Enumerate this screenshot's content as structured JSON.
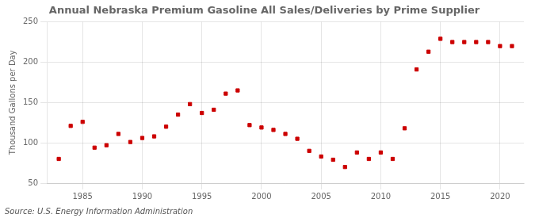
{
  "chart_data": {
    "type": "scatter",
    "title": "Annual Nebraska Premium Gasoline All Sales/Deliveries by Prime Supplier",
    "ylabel": "Thousand Gallons per Day",
    "source": "Source: U.S. Energy Information Administration",
    "x": [
      1983,
      1984,
      1985,
      1986,
      1987,
      1988,
      1989,
      1990,
      1991,
      1992,
      1993,
      1994,
      1995,
      1996,
      1997,
      1998,
      1999,
      2000,
      2001,
      2002,
      2003,
      2004,
      2005,
      2006,
      2007,
      2008,
      2009,
      2010,
      2011,
      2012,
      2013,
      2014,
      2015,
      2016,
      2017,
      2018,
      2019,
      2020,
      2021
    ],
    "values": [
      80,
      121,
      126,
      94,
      97,
      111,
      101,
      106,
      108,
      120,
      135,
      148,
      137,
      141,
      161,
      165,
      122,
      119,
      116,
      111,
      105,
      90,
      83,
      79,
      70,
      88,
      80,
      88,
      80,
      118,
      191,
      213,
      229,
      225,
      225,
      225,
      225,
      220,
      220
    ],
    "color": "#cc0000",
    "marker": "square",
    "xlim": [
      1982,
      2022
    ],
    "ylim": [
      50,
      250
    ],
    "xticks": [
      1985,
      1990,
      1995,
      2000,
      2005,
      2010,
      2015,
      2020
    ],
    "yticks": [
      50,
      100,
      150,
      200,
      250
    ],
    "grid": true
  }
}
